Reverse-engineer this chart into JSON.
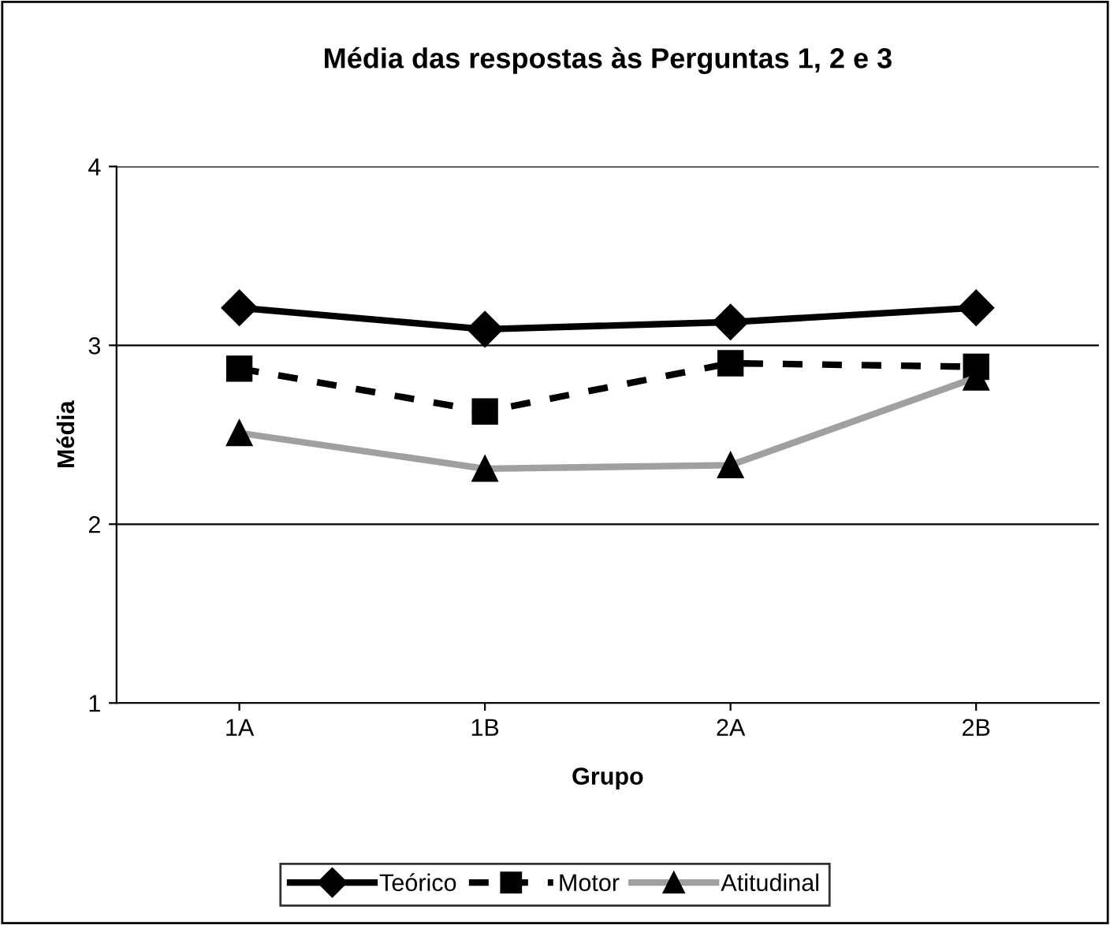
{
  "chart_data": {
    "type": "line",
    "title": "Média das respostas às Perguntas 1, 2 e 3",
    "xlabel": "Grupo",
    "ylabel": "Média",
    "categories": [
      "1A",
      "1B",
      "2A",
      "2B"
    ],
    "series": [
      {
        "name": "Teórico",
        "color": "#000000",
        "values": [
          3.21,
          3.09,
          3.13,
          3.21
        ],
        "marker": "diamond",
        "line_style": "solid"
      },
      {
        "name": "Motor",
        "color": "#000000",
        "values": [
          2.87,
          2.63,
          2.9,
          2.88
        ],
        "marker": "square",
        "line_style": "dashed"
      },
      {
        "name": "Atitudinal",
        "color": "#a0a0a0",
        "values": [
          2.51,
          2.31,
          2.33,
          2.82
        ],
        "marker": "triangle",
        "line_style": "solid"
      }
    ],
    "ylim": [
      1,
      4
    ],
    "yticks": [
      1,
      2,
      3,
      4
    ],
    "grid": "y",
    "legend": "bottom"
  }
}
